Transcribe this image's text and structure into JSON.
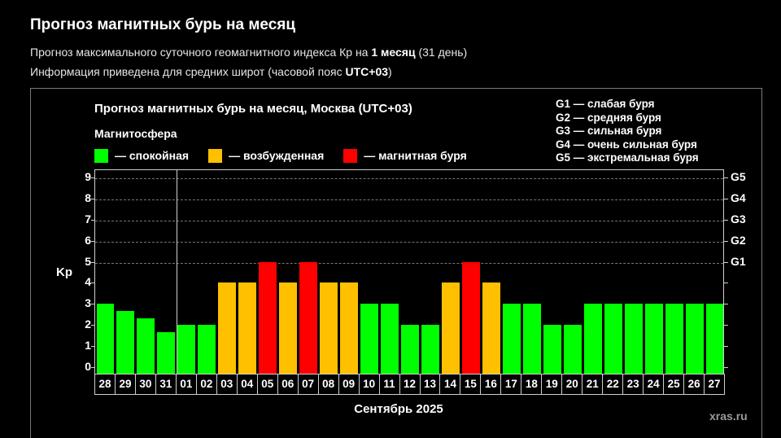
{
  "header": {
    "title": "Прогноз магнитных бурь на месяц",
    "sub1_pre": "Прогноз максимального суточного геомагнитного индекса Кр на ",
    "sub1_bold": "1 месяц",
    "sub1_post": " (31 день)",
    "sub2_pre": "Информация приведена для средних широт (часовой пояс ",
    "sub2_bold": "UTC+03",
    "sub2_post": ")"
  },
  "legend": {
    "title": "Магнитосфера",
    "items": [
      {
        "label": "— спокойная",
        "color": "#00ff00"
      },
      {
        "label": "— возбужденная",
        "color": "#ffc000"
      },
      {
        "label": "— магнитная буря",
        "color": "#ff0000"
      }
    ],
    "storm_levels": [
      "G1 — слабая буря",
      "G2 — средняя буря",
      "G3 — сильная буря",
      "G4 — очень сильная буря",
      "G5 — экстремальная буря"
    ]
  },
  "watermark": "xras.ru",
  "chart_data": {
    "type": "bar",
    "title": "Прогноз магнитных бурь на месяц, Москва (UTC+03)",
    "xlabel": "Сентябрь 2025",
    "ylabel": "Kp",
    "ylim": [
      0,
      9
    ],
    "yticks": [
      "0",
      "1",
      "2",
      "3",
      "4",
      "5",
      "6",
      "7",
      "8",
      "9"
    ],
    "right_ticks": [
      {
        "label": "G1",
        "value": 5
      },
      {
        "label": "G2",
        "value": 6
      },
      {
        "label": "G3",
        "value": 7
      },
      {
        "label": "G4",
        "value": 8
      },
      {
        "label": "G5",
        "value": 9
      }
    ],
    "grid": "dashed horizontal at 5-9",
    "categories": [
      "28",
      "29",
      "30",
      "31",
      "01",
      "02",
      "03",
      "04",
      "05",
      "06",
      "07",
      "08",
      "09",
      "10",
      "11",
      "12",
      "13",
      "14",
      "15",
      "16",
      "17",
      "18",
      "19",
      "20",
      "21",
      "22",
      "23",
      "24",
      "25",
      "26",
      "27"
    ],
    "values": [
      3,
      2.67,
      2.33,
      1.67,
      2,
      2,
      4,
      4,
      5,
      4,
      5,
      4,
      4,
      3,
      3,
      2,
      2,
      4,
      5,
      4,
      3,
      3,
      2,
      2,
      3,
      3,
      3,
      3,
      3,
      3,
      3
    ],
    "colors": [
      "#00ff00",
      "#00ff00",
      "#00ff00",
      "#00ff00",
      "#00ff00",
      "#00ff00",
      "#ffc000",
      "#ffc000",
      "#ff0000",
      "#ffc000",
      "#ff0000",
      "#ffc000",
      "#ffc000",
      "#00ff00",
      "#00ff00",
      "#00ff00",
      "#00ff00",
      "#ffc000",
      "#ff0000",
      "#ffc000",
      "#00ff00",
      "#00ff00",
      "#00ff00",
      "#00ff00",
      "#00ff00",
      "#00ff00",
      "#00ff00",
      "#00ff00",
      "#00ff00",
      "#00ff00",
      "#00ff00"
    ],
    "month_separator_after_index": 3
  }
}
